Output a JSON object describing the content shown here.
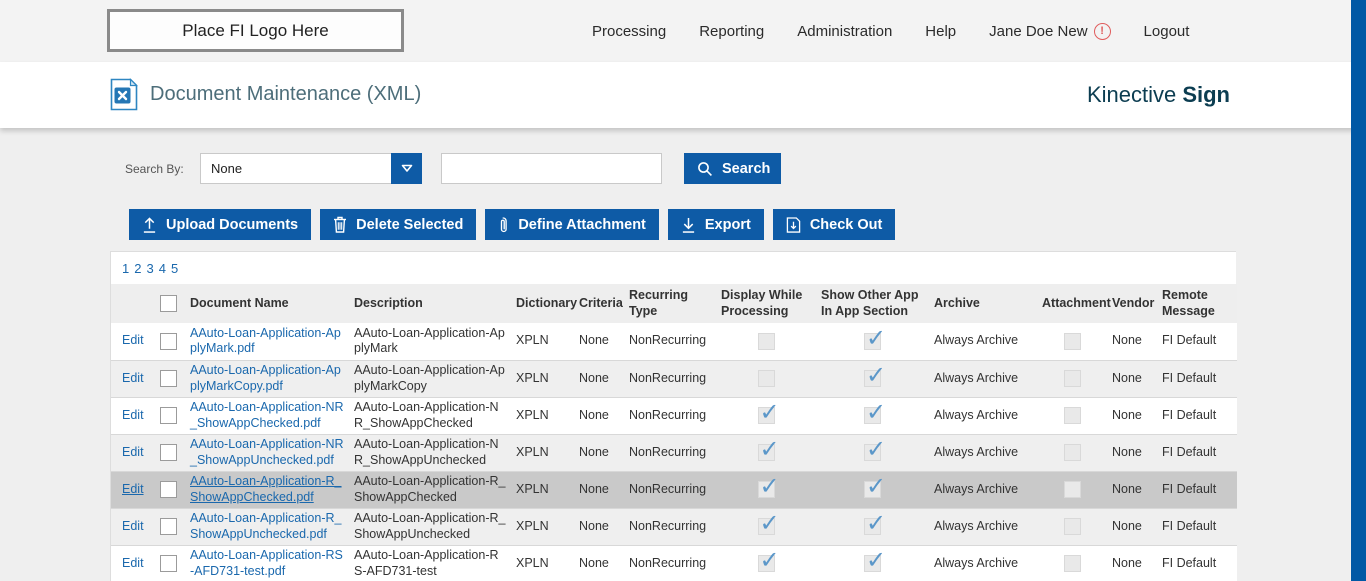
{
  "header": {
    "logo_placeholder": "Place FI Logo Here",
    "nav": [
      "Processing",
      "Reporting",
      "Administration",
      "Help"
    ],
    "user": "Jane Doe New",
    "user_badge": "!",
    "logout": "Logout"
  },
  "titlebar": {
    "title": "Document Maintenance (XML)",
    "brand_regular": "Kinective ",
    "brand_bold": "Sign"
  },
  "search": {
    "label": "Search By:",
    "dropdown_value": "None",
    "input_value": "",
    "button": "Search"
  },
  "toolbar": {
    "buttons": [
      "Upload Documents",
      "Delete Selected",
      "Define Attachment",
      "Export",
      "Check Out"
    ]
  },
  "pagination": [
    "1",
    "2",
    "3",
    "4",
    "5"
  ],
  "table": {
    "edit_label": "Edit",
    "columns": [
      "Document Name",
      "Description",
      "Dictionary",
      "Criteria",
      "Recurring Type",
      "Display While Processing",
      "Show Other App In App Section",
      "Archive",
      "Attachment",
      "Vendor",
      "Remote Message"
    ],
    "rows": [
      {
        "name": "AAuto-Loan-Application-ApplyMark.pdf",
        "description": "AAuto-Loan-Application-ApplyMark",
        "dictionary": "XPLN",
        "criteria": "None",
        "recurring": "NonRecurring",
        "display_while": false,
        "show_other": true,
        "archive": "Always Archive",
        "attachment": false,
        "vendor": "None",
        "remote": "FI Default",
        "highlight": false
      },
      {
        "name": "AAuto-Loan-Application-ApplyMarkCopy.pdf",
        "description": "AAuto-Loan-Application-ApplyMarkCopy",
        "dictionary": "XPLN",
        "criteria": "None",
        "recurring": "NonRecurring",
        "display_while": false,
        "show_other": true,
        "archive": "Always Archive",
        "attachment": false,
        "vendor": "None",
        "remote": "FI Default",
        "highlight": false
      },
      {
        "name": "AAuto-Loan-Application-NR_ShowAppChecked.pdf",
        "description": "AAuto-Loan-Application-NR_ShowAppChecked",
        "dictionary": "XPLN",
        "criteria": "None",
        "recurring": "NonRecurring",
        "display_while": true,
        "show_other": true,
        "archive": "Always Archive",
        "attachment": false,
        "vendor": "None",
        "remote": "FI Default",
        "highlight": false
      },
      {
        "name": "AAuto-Loan-Application-NR_ShowAppUnchecked.pdf",
        "description": "AAuto-Loan-Application-NR_ShowAppUnchecked",
        "dictionary": "XPLN",
        "criteria": "None",
        "recurring": "NonRecurring",
        "display_while": true,
        "show_other": true,
        "archive": "Always Archive",
        "attachment": false,
        "vendor": "None",
        "remote": "FI Default",
        "highlight": false
      },
      {
        "name": "AAuto-Loan-Application-R_ShowAppChecked.pdf",
        "description": "AAuto-Loan-Application-R_ShowAppChecked",
        "dictionary": "XPLN",
        "criteria": "None",
        "recurring": "NonRecurring",
        "display_while": true,
        "show_other": true,
        "archive": "Always Archive",
        "attachment": false,
        "vendor": "None",
        "remote": "FI Default",
        "highlight": true
      },
      {
        "name": "AAuto-Loan-Application-R_ShowAppUnchecked.pdf",
        "description": "AAuto-Loan-Application-R_ShowAppUnchecked",
        "dictionary": "XPLN",
        "criteria": "None",
        "recurring": "NonRecurring",
        "display_while": true,
        "show_other": true,
        "archive": "Always Archive",
        "attachment": false,
        "vendor": "None",
        "remote": "FI Default",
        "highlight": false
      },
      {
        "name": "AAuto-Loan-Application-RS-AFD731-test.pdf",
        "description": "AAuto-Loan-Application-RS-AFD731-test",
        "dictionary": "XPLN",
        "criteria": "None",
        "recurring": "NonRecurring",
        "display_while": true,
        "show_other": true,
        "archive": "Always Archive",
        "attachment": false,
        "vendor": "None",
        "remote": "FI Default",
        "highlight": false
      }
    ]
  },
  "colors": {
    "accent-blue": "#0e5ba6",
    "link-blue": "#1a68ad",
    "scrollbar-blue": "#0058a5",
    "brand-teal": "#0c3d51",
    "title-slate": "#4d6e7a",
    "warning-red": "#e05c5c",
    "highlight-row": "#c9c9c9",
    "alt-row": "#efefef"
  }
}
